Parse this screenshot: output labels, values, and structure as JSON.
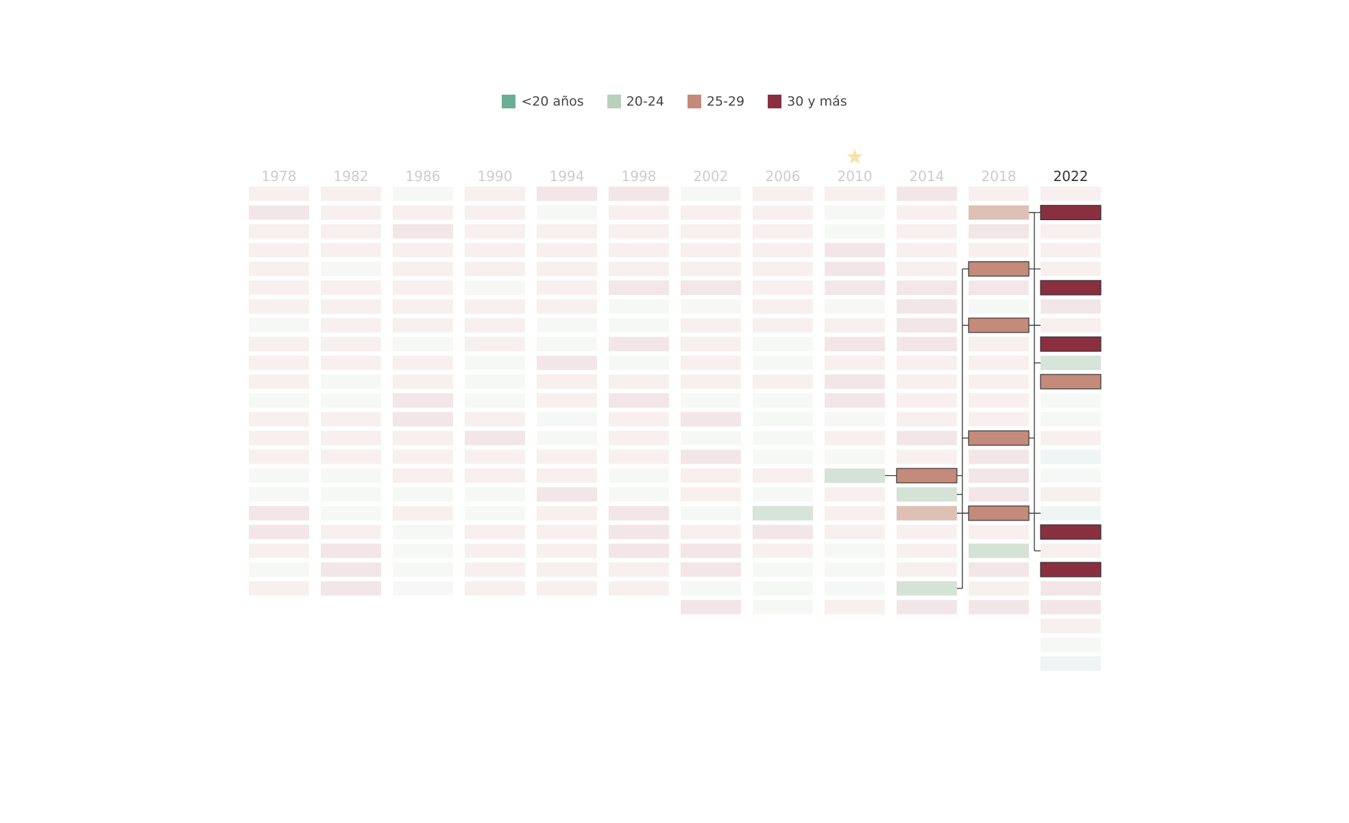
{
  "legend": [
    {
      "label": "<20 años",
      "color": "#6aae96"
    },
    {
      "label": "20-24",
      "color": "#b7d1bb"
    },
    {
      "label": "25-29",
      "color": "#c48a7a"
    },
    {
      "label": "30 y más",
      "color": "#8a2f3f"
    }
  ],
  "chart_data": {
    "type": "heatmap",
    "title": "",
    "xlabel": "",
    "ylabel": "",
    "x_ticks": [
      "1978",
      "1982",
      "1986",
      "1990",
      "1994",
      "1998",
      "2002",
      "2006",
      "2010",
      "2014",
      "2018",
      "2022"
    ],
    "highlight_year": "2022",
    "star_year": "2010",
    "categories": [
      "<20 años",
      "20-24",
      "25-29",
      "30 y más"
    ],
    "cells": [
      [
        "f",
        "d",
        "f",
        "f",
        "f",
        "f",
        "f",
        "g",
        "f",
        "f",
        "f",
        "g",
        "f",
        "f",
        "f",
        "g",
        "g",
        "d",
        "d",
        "f",
        "g",
        "f"
      ],
      [
        "f",
        "f",
        "f",
        "f",
        "g",
        "f",
        "f",
        "f",
        "f",
        "f",
        "g",
        "g",
        "f",
        "f",
        "f",
        "g",
        "g",
        "g",
        "f",
        "d",
        "d",
        "d"
      ],
      [
        "g",
        "f",
        "d",
        "f",
        "f",
        "f",
        "f",
        "f",
        "g",
        "f",
        "f",
        "d",
        "d",
        "f",
        "f",
        "f",
        "g",
        "f",
        "g",
        "g",
        "g",
        "g"
      ],
      [
        "f",
        "f",
        "f",
        "f",
        "f",
        "g",
        "f",
        "f",
        "f",
        "g",
        "g",
        "g",
        "f",
        "d",
        "f",
        "f",
        "g",
        "g",
        "f",
        "f",
        "f",
        "f"
      ],
      [
        "d",
        "g",
        "f",
        "f",
        "f",
        "f",
        "f",
        "g",
        "g",
        "d",
        "f",
        "f",
        "g",
        "g",
        "f",
        "f",
        "d",
        "f",
        "f",
        "f",
        "f",
        "f"
      ],
      [
        "d",
        "f",
        "f",
        "f",
        "f",
        "d",
        "g",
        "g",
        "d",
        "g",
        "f",
        "d",
        "f",
        "f",
        "f",
        "g",
        "g",
        "d",
        "d",
        "d",
        "f",
        "f"
      ],
      [
        "g",
        "f",
        "f",
        "f",
        "f",
        "d",
        "g",
        "f",
        "f",
        "f",
        "f",
        "g",
        "d",
        "g",
        "d",
        "f",
        "f",
        "g",
        "f",
        "d",
        "d",
        "g",
        "d"
      ],
      [
        "f",
        "f",
        "f",
        "f",
        "f",
        "f",
        "f",
        "f",
        "g",
        "g",
        "f",
        "g",
        "g",
        "g",
        "g",
        "f",
        "g",
        "a",
        "d",
        "f",
        "g",
        "g",
        "g"
      ],
      [
        "f",
        "g",
        "g",
        "d",
        "d",
        "d",
        "g",
        "f",
        "d",
        "f",
        "d",
        "d",
        "g",
        "f",
        "g",
        "b",
        "f",
        "f",
        "f",
        "g",
        "g",
        "g",
        "f"
      ],
      [
        "d",
        "f",
        "f",
        "f",
        "f",
        "d",
        "d",
        "d",
        "d",
        "f",
        "f",
        "f",
        "f",
        "d",
        "f",
        "C",
        "b",
        "B",
        "f",
        "f",
        "f",
        "b",
        "d"
      ],
      [
        "f",
        "B",
        "d",
        "f",
        "C",
        "d",
        "g",
        "C",
        "f",
        "f",
        "f",
        "f",
        "f",
        "C",
        "d",
        "d",
        "d",
        "C",
        "f",
        "b",
        "d",
        "f",
        "d"
      ],
      [
        "f",
        "D",
        "f",
        "f",
        "f",
        "D",
        "d",
        "f",
        "D",
        "a",
        "C",
        "g",
        "g",
        "f",
        "h",
        "g",
        "f",
        "h",
        "D",
        "f",
        "D",
        "d",
        "d",
        "f",
        "g",
        "h"
      ]
    ],
    "cell_legend": {
      "a": "<20 años (faint)",
      "b": "20-24",
      "B": "25-29 (light)",
      "C": "25-29",
      "D": "30 y más",
      "d": "30 y más (faint)",
      "f": "25-29 (faint)",
      "g": "20-24 (faint)",
      "h": "<20 años (faint)"
    }
  }
}
